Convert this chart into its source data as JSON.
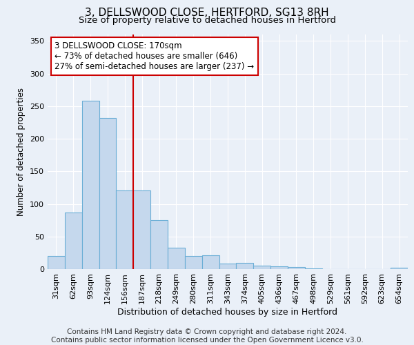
{
  "title": "3, DELLSWOOD CLOSE, HERTFORD, SG13 8RH",
  "subtitle": "Size of property relative to detached houses in Hertford",
  "xlabel": "Distribution of detached houses by size in Hertford",
  "ylabel": "Number of detached properties",
  "footer_line1": "Contains HM Land Registry data © Crown copyright and database right 2024.",
  "footer_line2": "Contains public sector information licensed under the Open Government Licence v3.0.",
  "bin_labels": [
    "31sqm",
    "62sqm",
    "93sqm",
    "124sqm",
    "156sqm",
    "187sqm",
    "218sqm",
    "249sqm",
    "280sqm",
    "311sqm",
    "343sqm",
    "374sqm",
    "405sqm",
    "436sqm",
    "467sqm",
    "498sqm",
    "529sqm",
    "561sqm",
    "592sqm",
    "623sqm",
    "654sqm"
  ],
  "bar_values": [
    20,
    87,
    258,
    232,
    121,
    121,
    75,
    33,
    20,
    21,
    9,
    10,
    5,
    4,
    3,
    1,
    0,
    0,
    0,
    0,
    2
  ],
  "bar_color": "#c5d8ed",
  "bar_edge_color": "#6aaed6",
  "reference_line_x": 4.5,
  "reference_line_color": "#cc0000",
  "annotation_line1": "3 DELLSWOOD CLOSE: 170sqm",
  "annotation_line2": "← 73% of detached houses are smaller (646)",
  "annotation_line3": "27% of semi-detached houses are larger (237) →",
  "annotation_box_color": "#ffffff",
  "annotation_box_edge_color": "#cc0000",
  "ylim": [
    0,
    360
  ],
  "yticks": [
    0,
    50,
    100,
    150,
    200,
    250,
    300,
    350
  ],
  "bg_color": "#eaf0f8",
  "plot_bg_color": "#eaf0f8",
  "grid_color": "#ffffff",
  "title_fontsize": 11,
  "subtitle_fontsize": 9.5,
  "annotation_fontsize": 8.5,
  "axis_fontsize": 8,
  "ylabel_fontsize": 8.5,
  "xlabel_fontsize": 9,
  "footer_fontsize": 7.5
}
